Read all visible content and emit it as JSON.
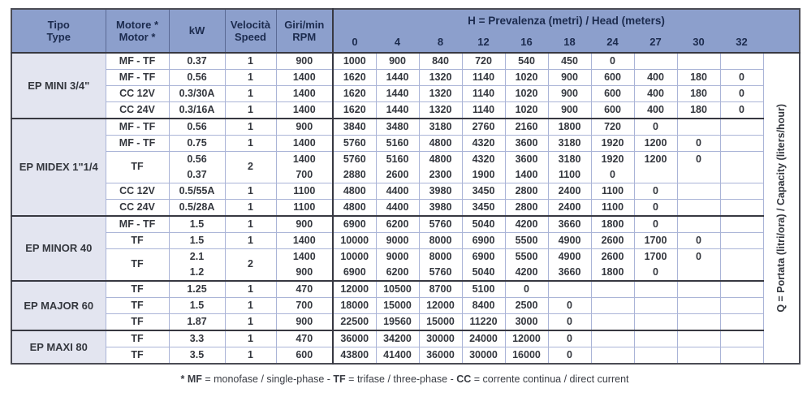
{
  "columns": [
    {
      "line1": "Tipo",
      "line2": "Type"
    },
    {
      "line1": "Motore *",
      "line2": "Motor *"
    },
    {
      "line1": "kW",
      "line2": ""
    },
    {
      "line1": "Velocità",
      "line2": "Speed"
    },
    {
      "line1": "Giri/min",
      "line2": "RPM"
    }
  ],
  "head_title": {
    "bold": "H",
    "rest": " = Prevalenza (metri) / Head (meters)"
  },
  "head_values": [
    "0",
    "4",
    "8",
    "12",
    "16",
    "18",
    "24",
    "27",
    "30",
    "32"
  ],
  "q_axis": {
    "bold": "Q",
    "rest": " = Portata (litri/ora) / Capacity (liters/hour)"
  },
  "footnote_segments": [
    {
      "text": "* MF ",
      "bold": true
    },
    {
      "text": "= monofase / single-phase - ",
      "bold": false
    },
    {
      "text": "TF ",
      "bold": true
    },
    {
      "text": "= trifase / three-phase - ",
      "bold": false
    },
    {
      "text": "CC ",
      "bold": true
    },
    {
      "text": "= corrente continua / direct current",
      "bold": false
    }
  ],
  "colors": {
    "header_bg": "#8c9fcc",
    "type_column_bg": "#e3e5f0",
    "grid_light": "#aab4d7",
    "grid_dark": "#373841",
    "header_text": "#1c2b4e",
    "body_text": "#34373e"
  },
  "sections": [
    {
      "type": "EP MINI 3/4\"",
      "rows": [
        {
          "motor": "MF - TF",
          "speed": "1",
          "lines": [
            {
              "kw": "0.37",
              "rpm": "900",
              "q": [
                "1000",
                "900",
                "840",
                "720",
                "540",
                "450",
                "0",
                "",
                "",
                ""
              ]
            }
          ]
        },
        {
          "motor": "MF - TF",
          "speed": "1",
          "lines": [
            {
              "kw": "0.56",
              "rpm": "1400",
              "q": [
                "1620",
                "1440",
                "1320",
                "1140",
                "1020",
                "900",
                "600",
                "400",
                "180",
                "0"
              ]
            }
          ]
        },
        {
          "motor": "CC 12V",
          "speed": "1",
          "lines": [
            {
              "kw": "0.3/30A",
              "rpm": "1400",
              "q": [
                "1620",
                "1440",
                "1320",
                "1140",
                "1020",
                "900",
                "600",
                "400",
                "180",
                "0"
              ]
            }
          ]
        },
        {
          "motor": "CC 24V",
          "speed": "1",
          "lines": [
            {
              "kw": "0.3/16A",
              "rpm": "1400",
              "q": [
                "1620",
                "1440",
                "1320",
                "1140",
                "1020",
                "900",
                "600",
                "400",
                "180",
                "0"
              ]
            }
          ]
        }
      ]
    },
    {
      "type": "EP MIDEX 1\"1/4",
      "rows": [
        {
          "motor": "MF - TF",
          "speed": "1",
          "lines": [
            {
              "kw": "0.56",
              "rpm": "900",
              "q": [
                "3840",
                "3480",
                "3180",
                "2760",
                "2160",
                "1800",
                "720",
                "0",
                "",
                ""
              ]
            }
          ]
        },
        {
          "motor": "MF - TF",
          "speed": "1",
          "lines": [
            {
              "kw": "0.75",
              "rpm": "1400",
              "q": [
                "5760",
                "5160",
                "4800",
                "4320",
                "3600",
                "3180",
                "1920",
                "1200",
                "0",
                ""
              ]
            }
          ]
        },
        {
          "motor": "TF",
          "speed": "2",
          "lines": [
            {
              "kw": "0.56",
              "rpm": "1400",
              "q": [
                "5760",
                "5160",
                "4800",
                "4320",
                "3600",
                "3180",
                "1920",
                "1200",
                "0",
                ""
              ]
            },
            {
              "kw": "0.37",
              "rpm": "700",
              "q": [
                "2880",
                "2600",
                "2300",
                "1900",
                "1400",
                "1100",
                "0",
                "",
                "",
                ""
              ]
            }
          ]
        },
        {
          "motor": "CC 12V",
          "speed": "1",
          "lines": [
            {
              "kw": "0.5/55A",
              "rpm": "1100",
              "q": [
                "4800",
                "4400",
                "3980",
                "3450",
                "2800",
                "2400",
                "1100",
                "0",
                "",
                ""
              ]
            }
          ]
        },
        {
          "motor": "CC 24V",
          "speed": "1",
          "lines": [
            {
              "kw": "0.5/28A",
              "rpm": "1100",
              "q": [
                "4800",
                "4400",
                "3980",
                "3450",
                "2800",
                "2400",
                "1100",
                "0",
                "",
                ""
              ]
            }
          ]
        }
      ]
    },
    {
      "type": "EP MINOR 40",
      "rows": [
        {
          "motor": "MF - TF",
          "speed": "1",
          "lines": [
            {
              "kw": "1.5",
              "rpm": "900",
              "q": [
                "6900",
                "6200",
                "5760",
                "5040",
                "4200",
                "3660",
                "1800",
                "0",
                "",
                ""
              ]
            }
          ]
        },
        {
          "motor": "TF",
          "speed": "1",
          "lines": [
            {
              "kw": "1.5",
              "rpm": "1400",
              "q": [
                "10000",
                "9000",
                "8000",
                "6900",
                "5500",
                "4900",
                "2600",
                "1700",
                "0",
                ""
              ]
            }
          ]
        },
        {
          "motor": "TF",
          "speed": "2",
          "lines": [
            {
              "kw": "2.1",
              "rpm": "1400",
              "q": [
                "10000",
                "9000",
                "8000",
                "6900",
                "5500",
                "4900",
                "2600",
                "1700",
                "0",
                ""
              ]
            },
            {
              "kw": "1.2",
              "rpm": "900",
              "q": [
                "6900",
                "6200",
                "5760",
                "5040",
                "4200",
                "3660",
                "1800",
                "0",
                "",
                ""
              ]
            }
          ]
        }
      ]
    },
    {
      "type": "EP MAJOR 60",
      "rows": [
        {
          "motor": "TF",
          "speed": "1",
          "lines": [
            {
              "kw": "1.25",
              "rpm": "470",
              "q": [
                "12000",
                "10500",
                "8700",
                "5100",
                "0",
                "",
                "",
                "",
                "",
                ""
              ]
            }
          ]
        },
        {
          "motor": "TF",
          "speed": "1",
          "lines": [
            {
              "kw": "1.5",
              "rpm": "700",
              "q": [
                "18000",
                "15000",
                "12000",
                "8400",
                "2500",
                "0",
                "",
                "",
                "",
                ""
              ]
            }
          ]
        },
        {
          "motor": "TF",
          "speed": "1",
          "lines": [
            {
              "kw": "1.87",
              "rpm": "900",
              "q": [
                "22500",
                "19560",
                "15000",
                "11220",
                "3000",
                "0",
                "",
                "",
                "",
                ""
              ]
            }
          ]
        }
      ]
    },
    {
      "type": "EP MAXI 80",
      "rows": [
        {
          "motor": "TF",
          "speed": "1",
          "lines": [
            {
              "kw": "3.3",
              "rpm": "470",
              "q": [
                "36000",
                "34200",
                "30000",
                "24000",
                "12000",
                "0",
                "",
                "",
                "",
                ""
              ]
            }
          ]
        },
        {
          "motor": "TF",
          "speed": "1",
          "lines": [
            {
              "kw": "3.5",
              "rpm": "600",
              "q": [
                "43800",
                "41400",
                "36000",
                "30000",
                "16000",
                "0",
                "",
                "",
                "",
                ""
              ]
            }
          ]
        }
      ]
    }
  ]
}
